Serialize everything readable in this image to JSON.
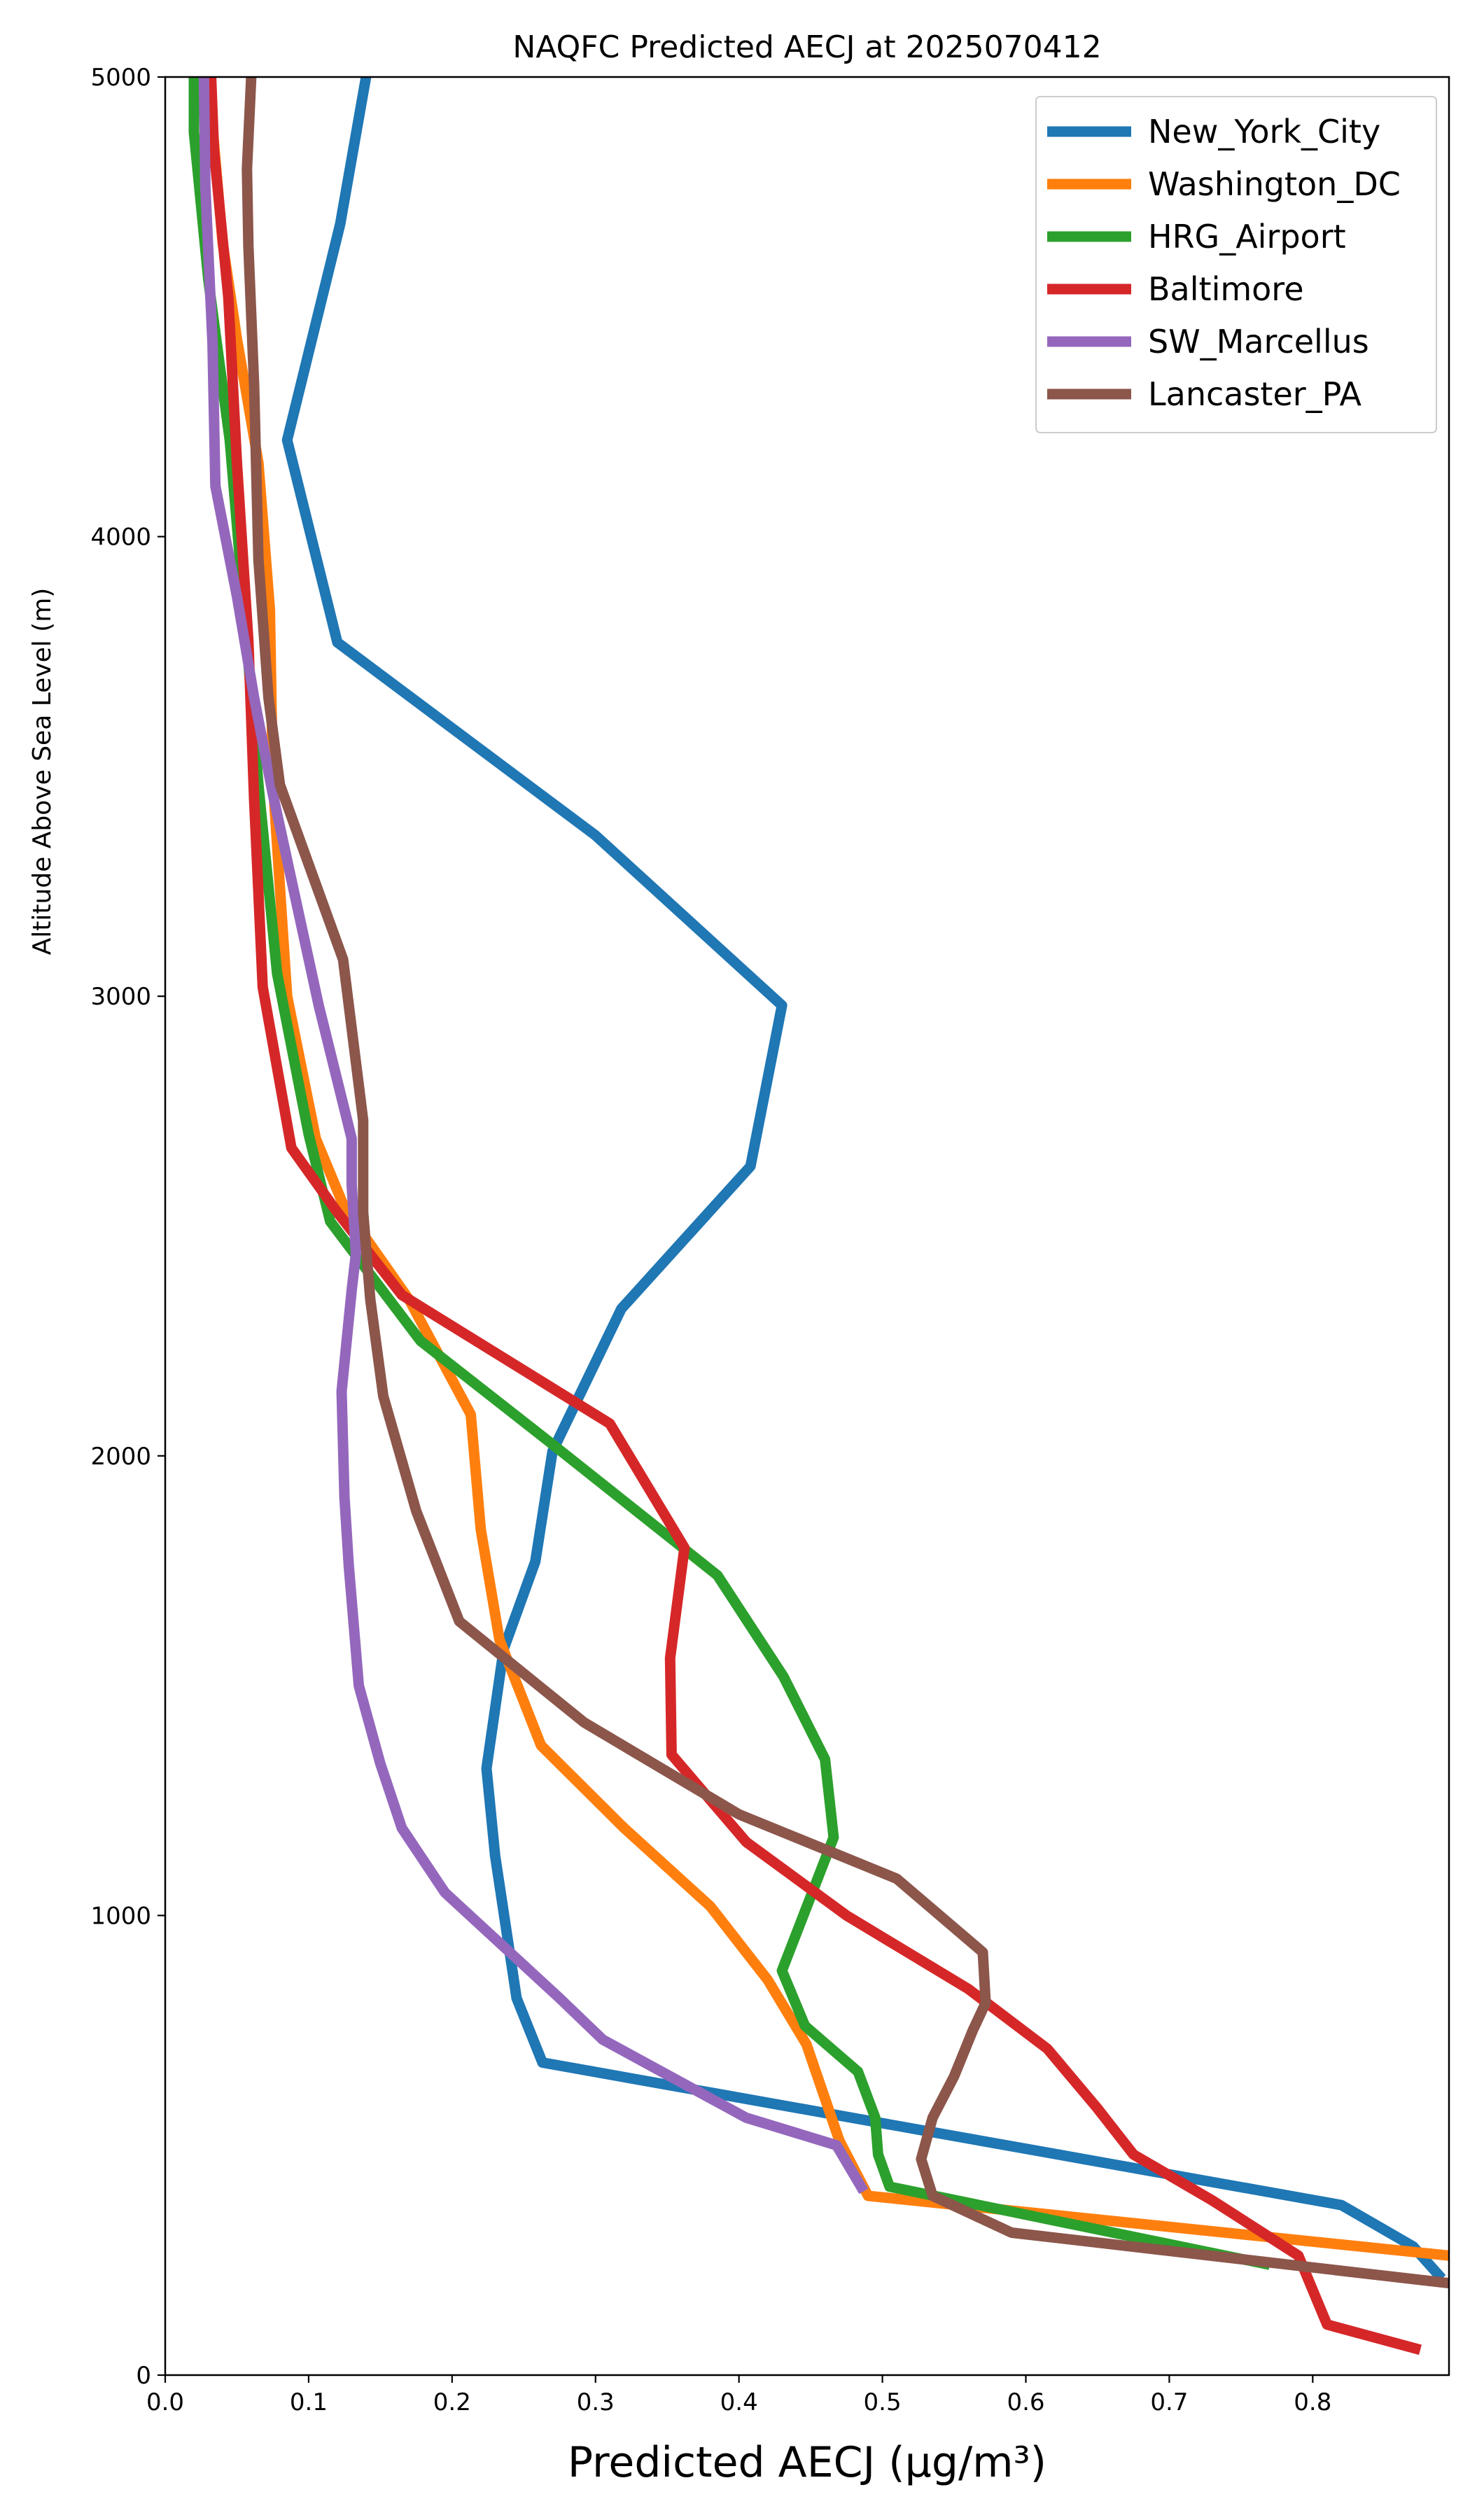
{
  "chart_data": {
    "type": "line",
    "title": "NAQFC Predicted AECJ at 2025070412",
    "xlabel": "Predicted AECJ (μg/m³)",
    "ylabel": "Altitude Above Sea Level (m)",
    "xlim": [
      0.0,
      0.895
    ],
    "ylim": [
      0,
      5000
    ],
    "xticks": [
      "0.0",
      "0.1",
      "0.2",
      "0.3",
      "0.4",
      "0.5",
      "0.6",
      "0.7",
      "0.8"
    ],
    "xtick_values": [
      0.0,
      0.1,
      0.2,
      0.3,
      0.4,
      0.5,
      0.6,
      0.7,
      0.8
    ],
    "yticks": [
      "0",
      "1000",
      "2000",
      "3000",
      "4000",
      "5000"
    ],
    "ytick_values": [
      0,
      1000,
      2000,
      3000,
      4000,
      5000
    ],
    "grid": false,
    "legend_position": "top-right",
    "series": [
      {
        "name": "New_York_City",
        "color": "#1f77b4",
        "points": [
          [
            0.89,
            210
          ],
          [
            0.87,
            280
          ],
          [
            0.82,
            370
          ],
          [
            0.263,
            680
          ],
          [
            0.245,
            820
          ],
          [
            0.23,
            1130
          ],
          [
            0.224,
            1320
          ],
          [
            0.236,
            1580
          ],
          [
            0.258,
            1770
          ],
          [
            0.27,
            2010
          ],
          [
            0.318,
            2320
          ],
          [
            0.408,
            2630
          ],
          [
            0.43,
            2980
          ],
          [
            0.3,
            3350
          ],
          [
            0.12,
            3770
          ],
          [
            0.085,
            4210
          ],
          [
            0.122,
            4680
          ],
          [
            0.14,
            5000
          ]
        ]
      },
      {
        "name": "Washington_DC",
        "color": "#ff7f0e",
        "points": [
          [
            0.895,
            260
          ],
          [
            0.49,
            390
          ],
          [
            0.47,
            510
          ],
          [
            0.447,
            720
          ],
          [
            0.42,
            860
          ],
          [
            0.38,
            1020
          ],
          [
            0.32,
            1190
          ],
          [
            0.262,
            1370
          ],
          [
            0.233,
            1600
          ],
          [
            0.22,
            1840
          ],
          [
            0.213,
            2090
          ],
          [
            0.17,
            2340
          ],
          [
            0.125,
            2540
          ],
          [
            0.105,
            2690
          ],
          [
            0.085,
            3000
          ],
          [
            0.075,
            3470
          ],
          [
            0.073,
            3840
          ],
          [
            0.065,
            4160
          ],
          [
            0.05,
            4430
          ],
          [
            0.04,
            4640
          ],
          [
            0.03,
            5000
          ]
        ]
      },
      {
        "name": "HRG_Airport",
        "color": "#2ca02c",
        "points": [
          [
            0.77,
            240
          ],
          [
            0.505,
            410
          ],
          [
            0.497,
            480
          ],
          [
            0.495,
            560
          ],
          [
            0.483,
            660
          ],
          [
            0.446,
            760
          ],
          [
            0.43,
            880
          ],
          [
            0.466,
            1170
          ],
          [
            0.46,
            1340
          ],
          [
            0.431,
            1520
          ],
          [
            0.385,
            1740
          ],
          [
            0.268,
            2030
          ],
          [
            0.178,
            2250
          ],
          [
            0.115,
            2510
          ],
          [
            0.1,
            2700
          ],
          [
            0.078,
            3050
          ],
          [
            0.065,
            3460
          ],
          [
            0.055,
            3840
          ],
          [
            0.045,
            4210
          ],
          [
            0.03,
            4560
          ],
          [
            0.02,
            4880
          ],
          [
            0.02,
            5000
          ]
        ]
      },
      {
        "name": "Baltimore",
        "color": "#d62728",
        "points": [
          [
            0.875,
            55
          ],
          [
            0.81,
            110
          ],
          [
            0.79,
            260
          ],
          [
            0.73,
            380
          ],
          [
            0.675,
            480
          ],
          [
            0.65,
            580
          ],
          [
            0.615,
            710
          ],
          [
            0.56,
            840
          ],
          [
            0.475,
            1000
          ],
          [
            0.405,
            1160
          ],
          [
            0.353,
            1350
          ],
          [
            0.352,
            1560
          ],
          [
            0.362,
            1800
          ],
          [
            0.31,
            2070
          ],
          [
            0.165,
            2350
          ],
          [
            0.12,
            2530
          ],
          [
            0.088,
            2670
          ],
          [
            0.068,
            3020
          ],
          [
            0.062,
            3430
          ],
          [
            0.058,
            3770
          ],
          [
            0.05,
            4160
          ],
          [
            0.044,
            4520
          ],
          [
            0.034,
            4840
          ],
          [
            0.032,
            5000
          ]
        ]
      },
      {
        "name": "SW_Marcellus",
        "color": "#9467bd",
        "points": [
          [
            0.487,
            400
          ],
          [
            0.468,
            500
          ],
          [
            0.405,
            560
          ],
          [
            0.305,
            730
          ],
          [
            0.275,
            820
          ],
          [
            0.195,
            1050
          ],
          [
            0.165,
            1190
          ],
          [
            0.15,
            1330
          ],
          [
            0.135,
            1500
          ],
          [
            0.128,
            1760
          ],
          [
            0.125,
            1910
          ],
          [
            0.123,
            2140
          ],
          [
            0.13,
            2360
          ],
          [
            0.133,
            2440
          ],
          [
            0.13,
            2590
          ],
          [
            0.13,
            2690
          ],
          [
            0.107,
            2980
          ],
          [
            0.075,
            3440
          ],
          [
            0.062,
            3650
          ],
          [
            0.05,
            3870
          ],
          [
            0.035,
            4110
          ],
          [
            0.033,
            4420
          ],
          [
            0.028,
            4760
          ],
          [
            0.027,
            5000
          ]
        ]
      },
      {
        "name": "Lancaster_PA",
        "color": "#8c564b",
        "points": [
          [
            0.895,
            200
          ],
          [
            0.59,
            310
          ],
          [
            0.535,
            390
          ],
          [
            0.527,
            470
          ],
          [
            0.535,
            560
          ],
          [
            0.55,
            650
          ],
          [
            0.563,
            750
          ],
          [
            0.572,
            810
          ],
          [
            0.57,
            920
          ],
          [
            0.51,
            1080
          ],
          [
            0.4,
            1220
          ],
          [
            0.292,
            1420
          ],
          [
            0.205,
            1640
          ],
          [
            0.175,
            1880
          ],
          [
            0.152,
            2130
          ],
          [
            0.143,
            2340
          ],
          [
            0.138,
            2530
          ],
          [
            0.138,
            2730
          ],
          [
            0.124,
            3080
          ],
          [
            0.08,
            3460
          ],
          [
            0.072,
            3650
          ],
          [
            0.065,
            3950
          ],
          [
            0.062,
            4330
          ],
          [
            0.058,
            4630
          ],
          [
            0.057,
            4800
          ],
          [
            0.06,
            5000
          ]
        ]
      }
    ]
  }
}
